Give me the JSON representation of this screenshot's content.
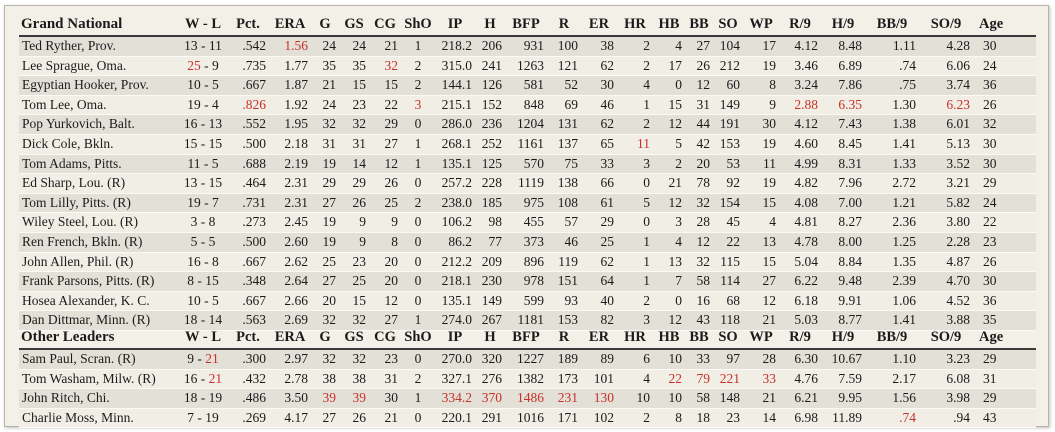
{
  "red": "#c8322b",
  "sections": [
    {
      "title": "Grand National",
      "columns": [
        "W - L",
        "Pct.",
        "ERA",
        "G",
        "GS",
        "CG",
        "ShO",
        "IP",
        "H",
        "BFP",
        "R",
        "ER",
        "HR",
        "HB",
        "BB",
        "SO",
        "WP",
        "R/9",
        "H/9",
        "BB/9",
        "SO/9",
        "Age"
      ],
      "rows": [
        [
          "Ted Ryther, Prov.",
          "13 - 11",
          ".542",
          {
            "text": "1.56",
            "color": "#c8322b"
          },
          "24",
          "24",
          "21",
          "1",
          "218.2",
          "206",
          "931",
          "100",
          "38",
          "2",
          "4",
          "27",
          "104",
          "17",
          "4.12",
          "8.48",
          "1.11",
          "4.28",
          "30"
        ],
        [
          "Lee Sprague, Oma.",
          [
            {
              "text": "25",
              "color": "#c8322b"
            },
            {
              "text": " - 9"
            }
          ],
          ".735",
          "1.77",
          "35",
          "35",
          {
            "text": "32",
            "color": "#c8322b"
          },
          "2",
          "315.0",
          "241",
          "1263",
          "121",
          "62",
          "2",
          "17",
          "26",
          "212",
          "19",
          "3.46",
          "6.89",
          ".74",
          "6.06",
          "24"
        ],
        [
          "Egyptian Hooker, Prov.",
          "10 - 5",
          ".667",
          "1.87",
          "21",
          "15",
          "15",
          "2",
          "144.1",
          "126",
          "581",
          "52",
          "30",
          "4",
          "0",
          "12",
          "60",
          "8",
          "3.24",
          "7.86",
          ".75",
          "3.74",
          "36"
        ],
        [
          "Tom Lee, Oma.",
          "19 - 4",
          {
            "text": ".826",
            "color": "#c8322b"
          },
          "1.92",
          "24",
          "23",
          "22",
          {
            "text": "3",
            "color": "#c8322b"
          },
          "215.1",
          "152",
          "848",
          "69",
          "46",
          "1",
          "15",
          "31",
          "149",
          "9",
          {
            "text": "2.88",
            "color": "#c8322b"
          },
          {
            "text": "6.35",
            "color": "#c8322b"
          },
          "1.30",
          {
            "text": "6.23",
            "color": "#c8322b"
          },
          "26"
        ],
        [
          "Pop Yurkovich, Balt.",
          "16 - 13",
          ".552",
          "1.95",
          "32",
          "32",
          "29",
          "0",
          "286.0",
          "236",
          "1204",
          "131",
          "62",
          "2",
          "12",
          "44",
          "191",
          "30",
          "4.12",
          "7.43",
          "1.38",
          "6.01",
          "32"
        ],
        [
          "Dick Cole, Bkln.",
          "15 - 15",
          ".500",
          "2.18",
          "31",
          "31",
          "27",
          "1",
          "268.1",
          "252",
          "1161",
          "137",
          "65",
          {
            "text": "11",
            "color": "#c8322b"
          },
          "5",
          "42",
          "153",
          "19",
          "4.60",
          "8.45",
          "1.41",
          "5.13",
          "30"
        ],
        [
          "Tom Adams, Pitts.",
          "11 - 5",
          ".688",
          "2.19",
          "19",
          "14",
          "12",
          "1",
          "135.1",
          "125",
          "570",
          "75",
          "33",
          "3",
          "2",
          "20",
          "53",
          "11",
          "4.99",
          "8.31",
          "1.33",
          "3.52",
          "30"
        ],
        [
          "Ed Sharp, Lou.  (R)",
          "13 - 15",
          ".464",
          "2.31",
          "29",
          "29",
          "26",
          "0",
          "257.2",
          "228",
          "1119",
          "138",
          "66",
          "0",
          "21",
          "78",
          "92",
          "19",
          "4.82",
          "7.96",
          "2.72",
          "3.21",
          "29"
        ],
        [
          "Tom Lilly, Pitts.  (R)",
          "19 - 7",
          ".731",
          "2.31",
          "27",
          "26",
          "25",
          "2",
          "238.0",
          "185",
          "975",
          "108",
          "61",
          "5",
          "12",
          "32",
          "154",
          "15",
          "4.08",
          "7.00",
          "1.21",
          "5.82",
          "24"
        ],
        [
          "Wiley Steel, Lou.  (R)",
          "3 - 8",
          ".273",
          "2.45",
          "19",
          "9",
          "9",
          "0",
          "106.2",
          "98",
          "455",
          "57",
          "29",
          "0",
          "3",
          "28",
          "45",
          "4",
          "4.81",
          "8.27",
          "2.36",
          "3.80",
          "22"
        ],
        [
          "Ren French, Bkln.  (R)",
          "5 - 5",
          ".500",
          "2.60",
          "19",
          "9",
          "8",
          "0",
          "86.2",
          "77",
          "373",
          "46",
          "25",
          "1",
          "4",
          "12",
          "22",
          "13",
          "4.78",
          "8.00",
          "1.25",
          "2.28",
          "23"
        ],
        [
          "John Allen, Phil.  (R)",
          "16 - 8",
          ".667",
          "2.62",
          "25",
          "23",
          "20",
          "0",
          "212.2",
          "209",
          "896",
          "119",
          "62",
          "1",
          "13",
          "32",
          "115",
          "15",
          "5.04",
          "8.84",
          "1.35",
          "4.87",
          "26"
        ],
        [
          "Frank Parsons, Pitts.  (R)",
          "8 - 15",
          ".348",
          "2.64",
          "27",
          "25",
          "20",
          "0",
          "218.1",
          "230",
          "978",
          "151",
          "64",
          "1",
          "7",
          "58",
          "114",
          "27",
          "6.22",
          "9.48",
          "2.39",
          "4.70",
          "30"
        ],
        [
          "Hosea Alexander, K. C.",
          "10 - 5",
          ".667",
          "2.66",
          "20",
          "15",
          "12",
          "0",
          "135.1",
          "149",
          "599",
          "93",
          "40",
          "2",
          "0",
          "16",
          "68",
          "12",
          "6.18",
          "9.91",
          "1.06",
          "4.52",
          "36"
        ],
        [
          "Dan Dittmar, Minn.  (R)",
          "18 - 14",
          ".563",
          "2.69",
          "32",
          "32",
          "27",
          "1",
          "274.0",
          "267",
          "1181",
          "153",
          "82",
          "3",
          "12",
          "43",
          "118",
          "21",
          "5.03",
          "8.77",
          "1.41",
          "3.88",
          "35"
        ]
      ]
    },
    {
      "title": "Other Leaders",
      "columns": [
        "W - L",
        "Pct.",
        "ERA",
        "G",
        "GS",
        "CG",
        "ShO",
        "IP",
        "H",
        "BFP",
        "R",
        "ER",
        "HR",
        "HB",
        "BB",
        "SO",
        "WP",
        "R/9",
        "H/9",
        "BB/9",
        "SO/9",
        "Age"
      ],
      "rows": [
        [
          "Sam Paul, Scran.  (R)",
          [
            {
              "text": "9 - "
            },
            {
              "text": "21",
              "color": "#c8322b"
            }
          ],
          ".300",
          "2.97",
          "32",
          "32",
          "23",
          "0",
          "270.0",
          "320",
          "1227",
          "189",
          "89",
          "6",
          "10",
          "33",
          "97",
          "28",
          "6.30",
          "10.67",
          "1.10",
          "3.23",
          "29"
        ],
        [
          "Tom Washam, Milw.  (R)",
          [
            {
              "text": "16 - "
            },
            {
              "text": "21",
              "color": "#c8322b"
            }
          ],
          ".432",
          "2.78",
          "38",
          "38",
          "31",
          "2",
          "327.1",
          "276",
          "1382",
          "173",
          "101",
          "4",
          {
            "text": "22",
            "color": "#c8322b"
          },
          {
            "text": "79",
            "color": "#c8322b"
          },
          {
            "text": "221",
            "color": "#c8322b"
          },
          {
            "text": "33",
            "color": "#c8322b"
          },
          "4.76",
          "7.59",
          "2.17",
          "6.08",
          "31"
        ],
        [
          "John Ritch, Chi.",
          "18 - 19",
          ".486",
          "3.50",
          {
            "text": "39",
            "color": "#c8322b"
          },
          {
            "text": "39",
            "color": "#c8322b"
          },
          "30",
          "1",
          {
            "text": "334.2",
            "color": "#c8322b"
          },
          {
            "text": "370",
            "color": "#c8322b"
          },
          {
            "text": "1486",
            "color": "#c8322b"
          },
          {
            "text": "231",
            "color": "#c8322b"
          },
          {
            "text": "130",
            "color": "#c8322b"
          },
          "10",
          "10",
          "58",
          "148",
          "21",
          "6.21",
          "9.95",
          "1.56",
          "3.98",
          "29"
        ],
        [
          "Charlie Moss, Minn.",
          "7 - 19",
          ".269",
          "4.17",
          "27",
          "26",
          "21",
          "0",
          "220.1",
          "291",
          "1016",
          "171",
          "102",
          "2",
          "8",
          "18",
          "23",
          "14",
          "6.98",
          "11.89",
          {
            "text": ".74",
            "color": "#c8322b"
          },
          ".94",
          "43"
        ]
      ]
    }
  ]
}
